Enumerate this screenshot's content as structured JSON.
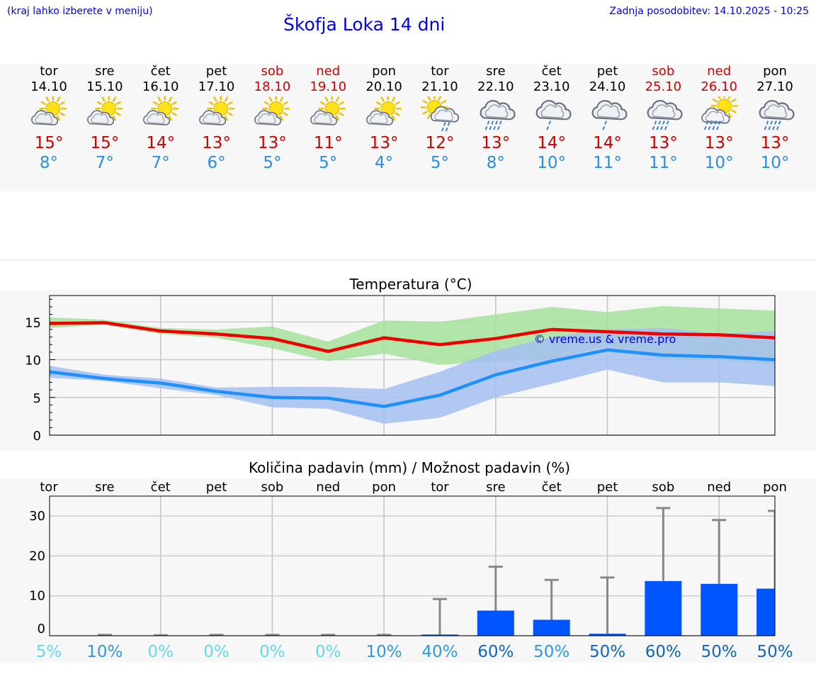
{
  "header": {
    "menu_hint": "(kraj lahko izberete v meniju)",
    "update": "Zadnja posodobitev: 14.10.2025 - 10:25",
    "title": "Škofja Loka 14 dni"
  },
  "days": [
    {
      "name": "tor",
      "date": "14.10",
      "max": "15°",
      "min": "8°",
      "icon": "partly-cloudy-icon",
      "weekend": false
    },
    {
      "name": "sre",
      "date": "15.10",
      "max": "15°",
      "min": "7°",
      "icon": "partly-cloudy-icon",
      "weekend": false
    },
    {
      "name": "čet",
      "date": "16.10",
      "max": "14°",
      "min": "7°",
      "icon": "partly-cloudy-icon",
      "weekend": false
    },
    {
      "name": "pet",
      "date": "17.10",
      "max": "13°",
      "min": "6°",
      "icon": "partly-cloudy-icon",
      "weekend": false
    },
    {
      "name": "sob",
      "date": "18.10",
      "max": "13°",
      "min": "5°",
      "icon": "partly-cloudy-icon",
      "weekend": true
    },
    {
      "name": "ned",
      "date": "19.10",
      "max": "11°",
      "min": "5°",
      "icon": "partly-cloudy-icon",
      "weekend": true
    },
    {
      "name": "pon",
      "date": "20.10",
      "max": "13°",
      "min": "4°",
      "icon": "partly-cloudy-icon",
      "weekend": false
    },
    {
      "name": "tor",
      "date": "21.10",
      "max": "12°",
      "min": "5°",
      "icon": "sun-rain-icon",
      "weekend": false
    },
    {
      "name": "sre",
      "date": "22.10",
      "max": "13°",
      "min": "8°",
      "icon": "cloud-rain-icon",
      "weekend": false
    },
    {
      "name": "čet",
      "date": "23.10",
      "max": "14°",
      "min": "10°",
      "icon": "cloud-rain-light-icon",
      "weekend": false
    },
    {
      "name": "pet",
      "date": "24.10",
      "max": "14°",
      "min": "11°",
      "icon": "cloud-rain-light-icon",
      "weekend": false
    },
    {
      "name": "sob",
      "date": "25.10",
      "max": "13°",
      "min": "11°",
      "icon": "cloud-rain-icon",
      "weekend": true
    },
    {
      "name": "ned",
      "date": "26.10",
      "max": "13°",
      "min": "10°",
      "icon": "sun-rain-heavy-icon",
      "weekend": true
    },
    {
      "name": "pon",
      "date": "27.10",
      "max": "13°",
      "min": "10°",
      "icon": "cloud-rain-icon",
      "weekend": false
    }
  ],
  "colors": {
    "max_text": "#cc0000",
    "min_text": "#2a8ee0",
    "max_line": "#ee0000",
    "min_line": "#1e90ff",
    "max_band": "#a6e29c",
    "min_band": "#a4c0f2",
    "bar": "#0055ff",
    "whisker": "#888888"
  },
  "chart_data": [
    {
      "type": "line",
      "title": "Temperatura (°C)",
      "watermark": "© vreme.us & vreme.pro",
      "ylim": [
        0,
        18.5
      ],
      "yticks": [
        0,
        5,
        10,
        15
      ],
      "grid": true,
      "series": [
        {
          "name": "max",
          "values": [
            14.8,
            14.9,
            13.8,
            13.4,
            12.8,
            11.1,
            12.9,
            12.0,
            12.8,
            14.0,
            13.7,
            13.4,
            13.3,
            12.9
          ],
          "band_low": [
            14.2,
            14.6,
            13.4,
            12.9,
            11.5,
            9.8,
            10.8,
            9.3,
            9.8,
            9.9,
            11.9,
            10.0,
            9.9,
            9.3
          ],
          "band_high": [
            15.6,
            15.3,
            14.2,
            14.0,
            14.4,
            12.4,
            15.2,
            15.0,
            16.0,
            17.0,
            16.3,
            17.1,
            16.8,
            16.5
          ]
        },
        {
          "name": "min",
          "values": [
            8.4,
            7.5,
            6.9,
            5.8,
            5.0,
            4.9,
            3.8,
            5.3,
            8.0,
            9.8,
            11.3,
            10.6,
            10.4,
            10.0
          ],
          "band_low": [
            7.6,
            7.2,
            6.2,
            5.3,
            3.7,
            3.5,
            1.5,
            2.3,
            5.0,
            6.8,
            8.7,
            7.0,
            7.0,
            6.5
          ],
          "band_high": [
            9.2,
            8.0,
            7.5,
            6.3,
            6.4,
            6.4,
            6.1,
            8.4,
            11.2,
            13.0,
            14.0,
            14.2,
            13.4,
            13.8
          ]
        }
      ]
    },
    {
      "type": "bar",
      "title": "Količina padavin (mm) / Možnost padavin (%)",
      "categories": [
        "tor",
        "sre",
        "čet",
        "pet",
        "sob",
        "ned",
        "pon",
        "tor",
        "sre",
        "čet",
        "pet",
        "sob",
        "ned",
        "pon"
      ],
      "ylim": [
        0,
        35
      ],
      "yticks": [
        0,
        10,
        20,
        30
      ],
      "values": [
        0,
        0,
        0,
        0,
        0,
        0,
        0,
        0.3,
        6.3,
        4.0,
        0.5,
        13.7,
        13.0,
        11.8
      ],
      "whisker_max": [
        0,
        0.2,
        0.1,
        0.2,
        0.2,
        0.2,
        0.2,
        9.2,
        17.3,
        14.0,
        14.6,
        32.0,
        29.0,
        31.3
      ],
      "probability": [
        "5%",
        "10%",
        "0%",
        "0%",
        "0%",
        "0%",
        "10%",
        "40%",
        "60%",
        "50%",
        "50%",
        "60%",
        "50%",
        "50%"
      ],
      "probability_colors": [
        "#66d7ee",
        "#3399dd",
        "#66d7ee",
        "#66d7ee",
        "#66d7ee",
        "#66d7ee",
        "#3399dd",
        "#3399dd",
        "#1166bb",
        "#3399dd",
        "#1166bb",
        "#1166bb",
        "#1166bb",
        "#1166bb"
      ]
    }
  ]
}
